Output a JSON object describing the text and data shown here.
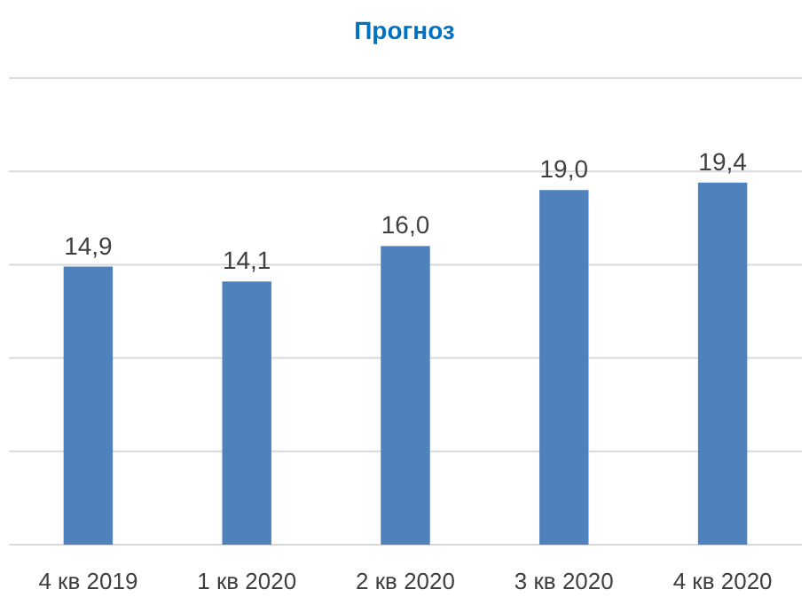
{
  "chart_data": {
    "type": "bar",
    "title": "Прогноз",
    "categories": [
      "4 кв 2019",
      "1 кв 2020",
      "2 кв 2020",
      "3 кв 2020",
      "4 кв 2020"
    ],
    "values": [
      14.9,
      14.1,
      16.0,
      19.0,
      19.4
    ],
    "value_labels": [
      "14,9",
      "14,1",
      "16,0",
      "19,0",
      "19,4"
    ],
    "color": "#4f81bd",
    "ylim": [
      0,
      25
    ],
    "yticks": [
      {
        "value": 0,
        "label": null
      },
      {
        "value": 5,
        "label": null
      },
      {
        "value": 10,
        "label": null
      },
      {
        "value": 15,
        "label": null
      },
      {
        "value": 20,
        "label": null
      },
      {
        "value": 25,
        "label": null
      }
    ],
    "tick_labels": "x",
    "grid": "y"
  }
}
